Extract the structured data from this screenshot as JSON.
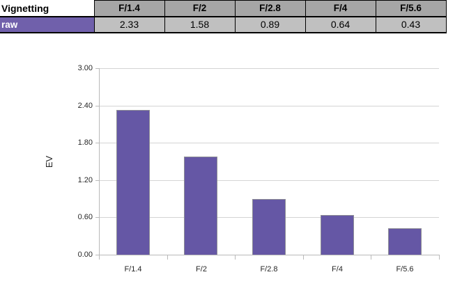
{
  "table": {
    "title": "Vignetting",
    "row_label": "raw",
    "columns": [
      "F/1.4",
      "F/2",
      "F/2.8",
      "F/4",
      "F/5.6"
    ],
    "values": [
      "2.33",
      "1.58",
      "0.89",
      "0.64",
      "0.43"
    ],
    "colors": {
      "header_bg": "#a6a6a6",
      "value_bg": "#c0c0c0",
      "row_label_bg": "#7060ab",
      "row_label_fg": "#ffffff",
      "border": "#000000"
    }
  },
  "chart_data": {
    "type": "bar",
    "title": "",
    "xlabel": "",
    "ylabel": "EV",
    "categories": [
      "F/1.4",
      "F/2",
      "F/2.8",
      "F/4",
      "F/5.6"
    ],
    "values": [
      2.33,
      1.58,
      0.89,
      0.64,
      0.43
    ],
    "ylim": [
      0,
      3
    ],
    "ytick_step": 0.6,
    "ytick_labels_top_to_bottom": [
      "3.00",
      "2.40",
      "1.80",
      "1.20",
      "0.60",
      "0.00"
    ],
    "grid": true,
    "legend": "none",
    "colors": {
      "bar_fill": "#6557a5",
      "bar_border": "#8e8e95",
      "gridline": "#d4d4d4",
      "axis": "#b9b9b9"
    }
  }
}
